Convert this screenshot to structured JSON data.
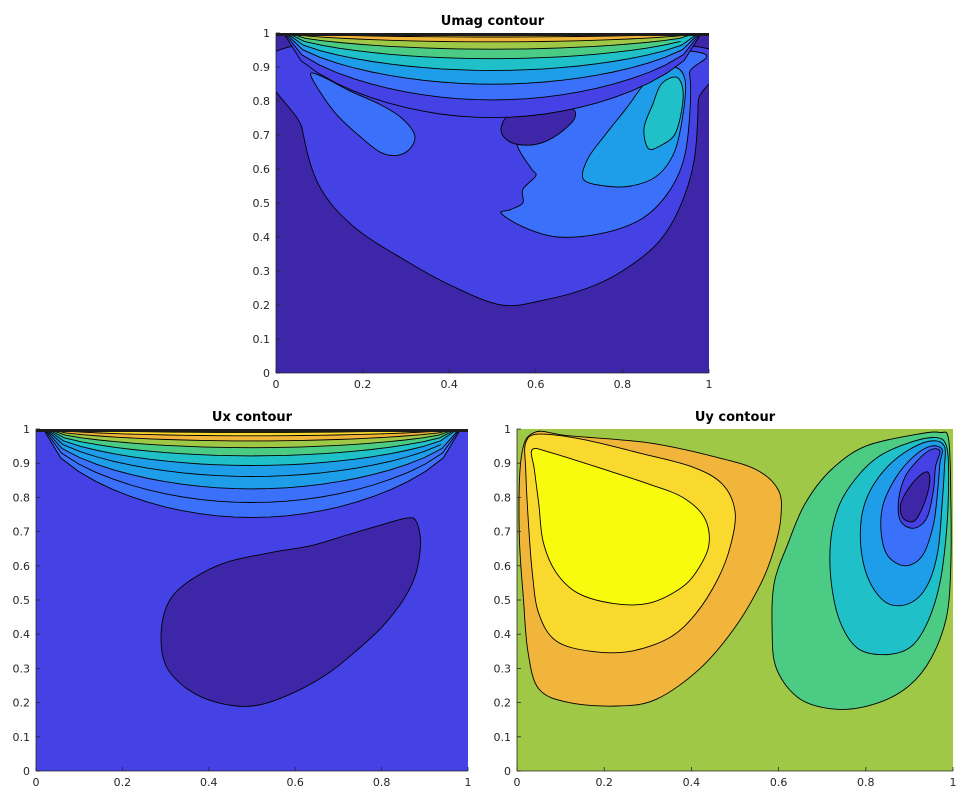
{
  "colors": {
    "level1": "#3e26a8",
    "level2": "#4542e5",
    "level3": "#3b70fb",
    "level4": "#1e9de8",
    "level5": "#20c0c8",
    "level6": "#4bcb83",
    "level7": "#9ec846",
    "level8": "#f0b53a",
    "level9": "#fad92e",
    "level10": "#f9fb0e"
  },
  "chart_data": [
    {
      "type": "contour",
      "title": "Umag contour",
      "xlabel": "",
      "ylabel": "",
      "xlim": [
        0,
        1
      ],
      "ylim": [
        0,
        1
      ],
      "x_ticks": [
        "0",
        "0.2",
        "0.4",
        "0.6",
        "0.8",
        "1"
      ],
      "y_ticks": [
        "0",
        "0.1",
        "0.2",
        "0.3",
        "0.4",
        "0.5",
        "0.6",
        "0.7",
        "0.8",
        "0.9",
        "1"
      ],
      "background_level": "level1",
      "regions": [
        {
          "level": "level2",
          "points": [
            [
              0.035,
              0.96
            ],
            [
              0.06,
              0.72
            ],
            [
              0.1,
              0.55
            ],
            [
              0.18,
              0.43
            ],
            [
              0.3,
              0.33
            ],
            [
              0.4,
              0.26
            ],
            [
              0.52,
              0.2
            ],
            [
              0.62,
              0.215
            ],
            [
              0.72,
              0.25
            ],
            [
              0.8,
              0.3
            ],
            [
              0.88,
              0.38
            ],
            [
              0.93,
              0.48
            ],
            [
              0.965,
              0.62
            ],
            [
              0.975,
              0.8
            ],
            [
              0.97,
              0.96
            ]
          ]
        },
        {
          "level": "level3",
          "points": [
            [
              0.08,
              0.88
            ],
            [
              0.11,
              0.87
            ],
            [
              0.17,
              0.83
            ],
            [
              0.24,
              0.79
            ],
            [
              0.29,
              0.75
            ],
            [
              0.32,
              0.7
            ],
            [
              0.31,
              0.66
            ],
            [
              0.28,
              0.64
            ],
            [
              0.24,
              0.65
            ],
            [
              0.19,
              0.7
            ],
            [
              0.14,
              0.76
            ],
            [
              0.1,
              0.83
            ]
          ]
        },
        {
          "level": "level3",
          "points": [
            [
              0.16,
              0.95
            ],
            [
              0.3,
              0.89
            ],
            [
              0.45,
              0.85
            ],
            [
              0.6,
              0.82
            ],
            [
              0.63,
              0.78
            ],
            [
              0.57,
              0.77
            ],
            [
              0.55,
              0.72
            ],
            [
              0.56,
              0.66
            ],
            [
              0.59,
              0.6
            ],
            [
              0.6,
              0.58
            ],
            [
              0.57,
              0.54
            ],
            [
              0.57,
              0.5
            ],
            [
              0.54,
              0.48
            ],
            [
              0.52,
              0.47
            ],
            [
              0.57,
              0.43
            ],
            [
              0.65,
              0.4
            ],
            [
              0.75,
              0.41
            ],
            [
              0.84,
              0.45
            ],
            [
              0.9,
              0.52
            ],
            [
              0.94,
              0.62
            ],
            [
              0.955,
              0.75
            ],
            [
              0.955,
              0.88
            ],
            [
              0.93,
              0.95
            ]
          ]
        },
        {
          "level": "level1",
          "points": [
            [
              0.53,
              0.75
            ],
            [
              0.56,
              0.77
            ],
            [
              0.61,
              0.78
            ],
            [
              0.68,
              0.78
            ],
            [
              0.69,
              0.75
            ],
            [
              0.66,
              0.71
            ],
            [
              0.62,
              0.68
            ],
            [
              0.58,
              0.67
            ],
            [
              0.54,
              0.68
            ],
            [
              0.52,
              0.71
            ]
          ]
        },
        {
          "level": "level4",
          "points": [
            [
              0.87,
              0.88
            ],
            [
              0.92,
              0.9
            ],
            [
              0.945,
              0.86
            ],
            [
              0.94,
              0.76
            ],
            [
              0.92,
              0.65
            ],
            [
              0.88,
              0.58
            ],
            [
              0.82,
              0.55
            ],
            [
              0.76,
              0.55
            ],
            [
              0.71,
              0.57
            ],
            [
              0.72,
              0.63
            ],
            [
              0.76,
              0.7
            ],
            [
              0.81,
              0.78
            ]
          ]
        },
        {
          "level": "level5",
          "points": [
            [
              0.89,
              0.85
            ],
            [
              0.925,
              0.87
            ],
            [
              0.94,
              0.83
            ],
            [
              0.935,
              0.76
            ],
            [
              0.92,
              0.7
            ],
            [
              0.89,
              0.67
            ],
            [
              0.86,
              0.66
            ],
            [
              0.85,
              0.72
            ],
            [
              0.87,
              0.79
            ]
          ]
        }
      ],
      "top_bands": [
        "level2",
        "level3",
        "level4",
        "level5",
        "level6",
        "level7",
        "level8",
        "level9"
      ]
    },
    {
      "type": "contour",
      "title": "Ux contour",
      "xlabel": "",
      "ylabel": "",
      "xlim": [
        0,
        1
      ],
      "ylim": [
        0,
        1
      ],
      "x_ticks": [
        "0",
        "0.2",
        "0.4",
        "0.6",
        "0.8",
        "1"
      ],
      "y_ticks": [
        "0",
        "0.1",
        "0.2",
        "0.3",
        "0.4",
        "0.5",
        "0.6",
        "0.7",
        "0.8",
        "0.9",
        "1"
      ],
      "background_level": "level2",
      "regions": [
        {
          "level": "level1",
          "points": [
            [
              0.31,
              0.5
            ],
            [
              0.36,
              0.56
            ],
            [
              0.44,
              0.61
            ],
            [
              0.55,
              0.64
            ],
            [
              0.64,
              0.66
            ],
            [
              0.72,
              0.69
            ],
            [
              0.8,
              0.72
            ],
            [
              0.86,
              0.74
            ],
            [
              0.88,
              0.73
            ],
            [
              0.89,
              0.67
            ],
            [
              0.88,
              0.58
            ],
            [
              0.85,
              0.5
            ],
            [
              0.8,
              0.42
            ],
            [
              0.74,
              0.35
            ],
            [
              0.67,
              0.28
            ],
            [
              0.58,
              0.22
            ],
            [
              0.5,
              0.19
            ],
            [
              0.42,
              0.2
            ],
            [
              0.35,
              0.24
            ],
            [
              0.3,
              0.31
            ],
            [
              0.29,
              0.41
            ]
          ]
        }
      ],
      "top_bands": [
        "level3",
        "level3",
        "level4",
        "level4",
        "level5",
        "level6",
        "level7",
        "level8",
        "level9",
        "level10"
      ]
    },
    {
      "type": "contour",
      "title": "Uy contour",
      "xlabel": "",
      "ylabel": "",
      "xlim": [
        0,
        1
      ],
      "ylim": [
        0,
        1
      ],
      "x_ticks": [
        "0",
        "0.2",
        "0.4",
        "0.6",
        "0.8",
        "1"
      ],
      "y_ticks": [
        "0",
        "0.1",
        "0.2",
        "0.3",
        "0.4",
        "0.5",
        "0.6",
        "0.7",
        "0.8",
        "0.9",
        "1"
      ],
      "background_level": "level7",
      "regions": [
        {
          "level": "level8",
          "points": [
            [
              0.01,
              0.92
            ],
            [
              0.04,
              0.99
            ],
            [
              0.12,
              0.98
            ],
            [
              0.3,
              0.96
            ],
            [
              0.45,
              0.92
            ],
            [
              0.55,
              0.88
            ],
            [
              0.6,
              0.82
            ],
            [
              0.605,
              0.74
            ],
            [
              0.59,
              0.65
            ],
            [
              0.56,
              0.55
            ],
            [
              0.5,
              0.42
            ],
            [
              0.42,
              0.3
            ],
            [
              0.32,
              0.21
            ],
            [
              0.23,
              0.19
            ],
            [
              0.12,
              0.2
            ],
            [
              0.05,
              0.24
            ],
            [
              0.025,
              0.35
            ],
            [
              0.015,
              0.5
            ],
            [
              0.005,
              0.7
            ]
          ]
        },
        {
          "level": "level9",
          "points": [
            [
              0.02,
              0.96
            ],
            [
              0.05,
              0.985
            ],
            [
              0.15,
              0.97
            ],
            [
              0.28,
              0.93
            ],
            [
              0.4,
              0.89
            ],
            [
              0.47,
              0.84
            ],
            [
              0.5,
              0.76
            ],
            [
              0.49,
              0.66
            ],
            [
              0.46,
              0.56
            ],
            [
              0.41,
              0.46
            ],
            [
              0.35,
              0.39
            ],
            [
              0.26,
              0.35
            ],
            [
              0.17,
              0.35
            ],
            [
              0.09,
              0.38
            ],
            [
              0.05,
              0.46
            ],
            [
              0.035,
              0.58
            ],
            [
              0.025,
              0.75
            ],
            [
              0.02,
              0.88
            ]
          ]
        },
        {
          "level": "level10",
          "points": [
            [
              0.035,
              0.94
            ],
            [
              0.08,
              0.93
            ],
            [
              0.18,
              0.89
            ],
            [
              0.3,
              0.84
            ],
            [
              0.38,
              0.8
            ],
            [
              0.43,
              0.74
            ],
            [
              0.44,
              0.66
            ],
            [
              0.41,
              0.58
            ],
            [
              0.37,
              0.53
            ],
            [
              0.3,
              0.49
            ],
            [
              0.22,
              0.49
            ],
            [
              0.14,
              0.52
            ],
            [
              0.09,
              0.58
            ],
            [
              0.06,
              0.67
            ],
            [
              0.05,
              0.78
            ],
            [
              0.04,
              0.88
            ]
          ]
        },
        {
          "level": "level6",
          "points": [
            [
              0.99,
              0.97
            ],
            [
              0.97,
              0.99
            ],
            [
              0.92,
              0.985
            ],
            [
              0.8,
              0.95
            ],
            [
              0.72,
              0.88
            ],
            [
              0.66,
              0.78
            ],
            [
              0.62,
              0.66
            ],
            [
              0.59,
              0.55
            ],
            [
              0.585,
              0.42
            ],
            [
              0.595,
              0.3
            ],
            [
              0.65,
              0.21
            ],
            [
              0.74,
              0.18
            ],
            [
              0.83,
              0.2
            ],
            [
              0.9,
              0.25
            ],
            [
              0.95,
              0.33
            ],
            [
              0.985,
              0.45
            ],
            [
              0.995,
              0.6
            ],
            [
              0.995,
              0.8
            ]
          ]
        },
        {
          "level": "level5",
          "points": [
            [
              0.985,
              0.95
            ],
            [
              0.96,
              0.975
            ],
            [
              0.9,
              0.96
            ],
            [
              0.83,
              0.92
            ],
            [
              0.78,
              0.86
            ],
            [
              0.74,
              0.78
            ],
            [
              0.72,
              0.68
            ],
            [
              0.72,
              0.56
            ],
            [
              0.74,
              0.44
            ],
            [
              0.78,
              0.36
            ],
            [
              0.84,
              0.34
            ],
            [
              0.9,
              0.36
            ],
            [
              0.94,
              0.43
            ],
            [
              0.97,
              0.55
            ],
            [
              0.985,
              0.7
            ],
            [
              0.99,
              0.85
            ]
          ]
        },
        {
          "level": "level4",
          "points": [
            [
              0.98,
              0.95
            ],
            [
              0.95,
              0.965
            ],
            [
              0.9,
              0.94
            ],
            [
              0.85,
              0.89
            ],
            [
              0.81,
              0.82
            ],
            [
              0.79,
              0.74
            ],
            [
              0.79,
              0.64
            ],
            [
              0.81,
              0.55
            ],
            [
              0.85,
              0.49
            ],
            [
              0.9,
              0.49
            ],
            [
              0.94,
              0.54
            ],
            [
              0.965,
              0.64
            ],
            [
              0.975,
              0.78
            ],
            [
              0.98,
              0.88
            ]
          ]
        },
        {
          "level": "level3",
          "points": [
            [
              0.975,
              0.94
            ],
            [
              0.95,
              0.95
            ],
            [
              0.91,
              0.92
            ],
            [
              0.87,
              0.86
            ],
            [
              0.84,
              0.78
            ],
            [
              0.835,
              0.7
            ],
            [
              0.85,
              0.63
            ],
            [
              0.89,
              0.6
            ],
            [
              0.93,
              0.63
            ],
            [
              0.955,
              0.72
            ],
            [
              0.965,
              0.82
            ],
            [
              0.97,
              0.9
            ]
          ]
        },
        {
          "level": "level2",
          "points": [
            [
              0.97,
              0.935
            ],
            [
              0.95,
              0.94
            ],
            [
              0.92,
              0.91
            ],
            [
              0.89,
              0.86
            ],
            [
              0.875,
              0.79
            ],
            [
              0.88,
              0.73
            ],
            [
              0.91,
              0.71
            ],
            [
              0.94,
              0.74
            ],
            [
              0.955,
              0.82
            ],
            [
              0.96,
              0.89
            ]
          ]
        },
        {
          "level": "level1",
          "points": [
            [
              0.93,
              0.87
            ],
            [
              0.9,
              0.83
            ],
            [
              0.88,
              0.78
            ],
            [
              0.885,
              0.74
            ],
            [
              0.91,
              0.73
            ],
            [
              0.93,
              0.77
            ],
            [
              0.945,
              0.83
            ],
            [
              0.945,
              0.87
            ]
          ]
        }
      ],
      "top_bands": []
    }
  ]
}
